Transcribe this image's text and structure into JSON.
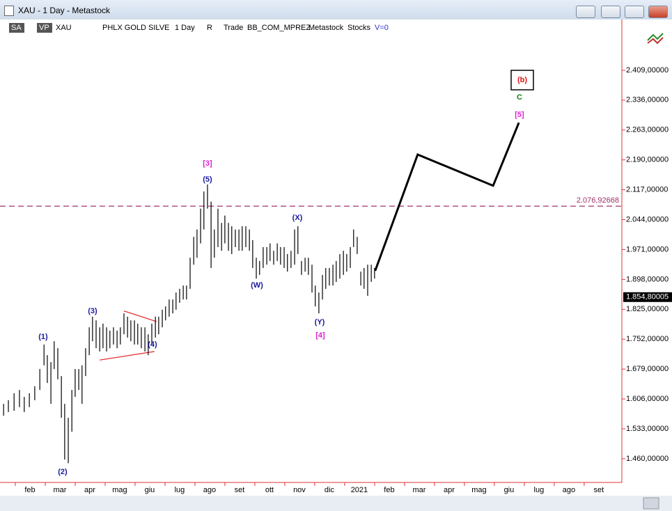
{
  "window": {
    "title": "XAU - 1 Day - Metastock"
  },
  "toolbar": [
    "SA",
    "VP",
    "XAU",
    "PHLX GOLD SILVE",
    "1 Day",
    "R",
    "Trade",
    "BB_COM_MPREZ",
    "Metastock",
    "Stocks",
    "V=0"
  ],
  "chart_data": {
    "type": "ohlc",
    "xlim": [
      0,
      20.77
    ],
    "xticks": [
      {
        "value": 1,
        "label": "feb"
      },
      {
        "value": 2,
        "label": "mar"
      },
      {
        "value": 3,
        "label": "apr"
      },
      {
        "value": 4,
        "label": "mag"
      },
      {
        "value": 5,
        "label": "giu"
      },
      {
        "value": 6,
        "label": "lug"
      },
      {
        "value": 7,
        "label": "ago"
      },
      {
        "value": 8,
        "label": "set"
      },
      {
        "value": 9,
        "label": "ott"
      },
      {
        "value": 10,
        "label": "nov"
      },
      {
        "value": 11,
        "label": "dic"
      },
      {
        "value": 12,
        "label": "2021"
      },
      {
        "value": 13,
        "label": "feb"
      },
      {
        "value": 14,
        "label": "mar"
      },
      {
        "value": 15,
        "label": "apr"
      },
      {
        "value": 16,
        "label": "mag"
      },
      {
        "value": 17,
        "label": "giu"
      },
      {
        "value": 18,
        "label": "lug"
      },
      {
        "value": 19,
        "label": "ago"
      },
      {
        "value": 20,
        "label": "set"
      }
    ],
    "ylim": [
      1402,
      2533
    ],
    "yticks": [
      {
        "value": 1460,
        "label": "1.460,00000"
      },
      {
        "value": 1533,
        "label": "1.533,00000"
      },
      {
        "value": 1606,
        "label": "1.606,00000"
      },
      {
        "value": 1679,
        "label": "1.679,00000"
      },
      {
        "value": 1752,
        "label": "1.752,00000"
      },
      {
        "value": 1825,
        "label": "1.825,00000"
      },
      {
        "value": 1898,
        "label": "1.898,00000"
      },
      {
        "value": 1971,
        "label": "1.971,00000"
      },
      {
        "value": 2044,
        "label": "2.044,00000"
      },
      {
        "value": 2117,
        "label": "2.117,00000"
      },
      {
        "value": 2190,
        "label": "2.190,00000"
      },
      {
        "value": 2263,
        "label": "2.263,00000"
      },
      {
        "value": 2336,
        "label": "2.336,00000"
      },
      {
        "value": 2409,
        "label": "2.409,00000"
      }
    ],
    "x": [
      0.12,
      0.28,
      0.47,
      0.65,
      0.81,
      0.98,
      1.16,
      1.33,
      1.47,
      1.58,
      1.7,
      1.81,
      1.93,
      2.05,
      2.16,
      2.28,
      2.4,
      2.51,
      2.63,
      2.74,
      2.86,
      2.98,
      3.09,
      3.21,
      3.33,
      3.44,
      3.56,
      3.67,
      3.79,
      3.91,
      4.02,
      4.14,
      4.26,
      4.37,
      4.49,
      4.6,
      4.72,
      4.84,
      4.95,
      5.07,
      5.19,
      5.3,
      5.42,
      5.53,
      5.65,
      5.77,
      5.88,
      6.0,
      6.12,
      6.23,
      6.35,
      6.47,
      6.58,
      6.7,
      6.81,
      6.93,
      7.05,
      7.16,
      7.28,
      7.4,
      7.51,
      7.63,
      7.74,
      7.86,
      7.98,
      8.09,
      8.21,
      8.33,
      8.44,
      8.56,
      8.67,
      8.79,
      8.91,
      9.02,
      9.14,
      9.26,
      9.37,
      9.49,
      9.6,
      9.72,
      9.84,
      9.95,
      10.07,
      10.19,
      10.3,
      10.42,
      10.53,
      10.65,
      10.77,
      10.88,
      11.0,
      11.12,
      11.23,
      11.35,
      11.47,
      11.58,
      11.7,
      11.81,
      11.93,
      12.05,
      12.16,
      12.28,
      12.4,
      12.51
    ],
    "high": [
      1594,
      1603,
      1620,
      1628,
      1611,
      1620,
      1637,
      1679,
      1739,
      1713,
      1696,
      1747,
      1730,
      1662,
      1594,
      1560,
      1628,
      1679,
      1679,
      1688,
      1730,
      1781,
      1807,
      1798,
      1781,
      1790,
      1781,
      1773,
      1781,
      1773,
      1781,
      1815,
      1807,
      1798,
      1798,
      1790,
      1781,
      1781,
      1764,
      1790,
      1807,
      1807,
      1824,
      1832,
      1849,
      1849,
      1866,
      1875,
      1883,
      1883,
      1951,
      2002,
      2020,
      2071,
      2113,
      2130,
      2088,
      2020,
      2071,
      2036,
      2054,
      2036,
      2028,
      2020,
      2020,
      2028,
      2028,
      2020,
      1994,
      1951,
      1943,
      1977,
      1977,
      1986,
      1968,
      1986,
      1977,
      1977,
      1960,
      1968,
      2020,
      2028,
      1943,
      1951,
      1951,
      1934,
      1883,
      1866,
      1909,
      1926,
      1926,
      1934,
      1943,
      1960,
      1968,
      1960,
      1977,
      2020,
      2002,
      1917,
      1926,
      1934,
      1934,
      1926
    ],
    "low": [
      1565,
      1574,
      1577,
      1586,
      1574,
      1586,
      1603,
      1628,
      1688,
      1645,
      1594,
      1679,
      1654,
      1560,
      1458,
      1449,
      1526,
      1611,
      1628,
      1594,
      1662,
      1713,
      1747,
      1730,
      1722,
      1730,
      1722,
      1730,
      1739,
      1730,
      1739,
      1764,
      1756,
      1747,
      1739,
      1739,
      1730,
      1722,
      1713,
      1739,
      1756,
      1764,
      1781,
      1798,
      1807,
      1815,
      1824,
      1841,
      1849,
      1849,
      1875,
      1934,
      1951,
      1986,
      2020,
      2071,
      1926,
      1951,
      1977,
      1968,
      1986,
      1968,
      1960,
      1977,
      1968,
      1968,
      1977,
      1968,
      1926,
      1900,
      1909,
      1926,
      1934,
      1943,
      1934,
      1943,
      1934,
      1926,
      1917,
      1926,
      1934,
      1960,
      1909,
      1917,
      1909,
      1866,
      1832,
      1815,
      1849,
      1875,
      1883,
      1883,
      1892,
      1900,
      1909,
      1917,
      1926,
      1977,
      1960,
      1883,
      1875,
      1858,
      1892,
      1900
    ],
    "color": "#000000",
    "projection": {
      "x": [
        12.53,
        13.95,
        16.47,
        17.33
      ],
      "values": [
        1919,
        2203,
        2127,
        2281
      ],
      "color": "#000000"
    },
    "triangle": [
      {
        "x": [
          4.14,
          5.23
        ],
        "values": [
          1821,
          1795
        ]
      },
      {
        "x": [
          3.33,
          5.16
        ],
        "values": [
          1701,
          1722
        ]
      }
    ],
    "triangle_color": "#e02020",
    "hline": {
      "value": 2076.92668,
      "label": "2.076,92668",
      "color": "#a0306a"
    },
    "last_price": {
      "value": 1854.80005,
      "label": "1.854,80005"
    },
    "annotations": [
      "(1)",
      "(2)",
      "(3)",
      "(4)",
      "(5)",
      "[3]",
      "(W)",
      "(X)",
      "(Y)",
      "[4]",
      "(b)",
      "C",
      "[5]"
    ]
  }
}
